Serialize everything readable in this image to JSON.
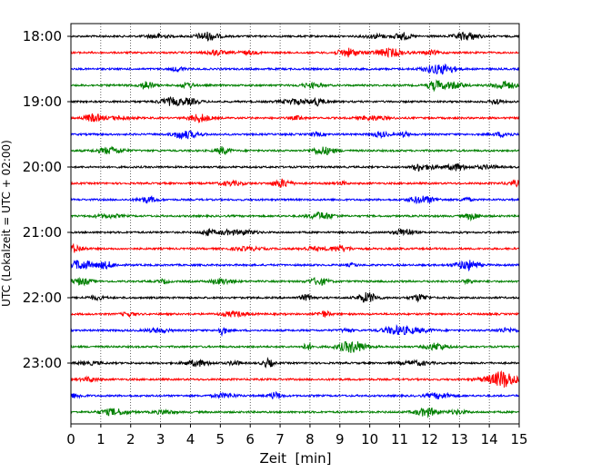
{
  "chart_data": {
    "type": "line",
    "title": "",
    "xlabel": "Zeit  [min]",
    "ylabel": "UTC (Lokalzeit = UTC + 02:00)",
    "xlim": [
      0,
      15
    ],
    "x_ticks": [
      0,
      1,
      2,
      3,
      4,
      5,
      6,
      7,
      8,
      9,
      10,
      11,
      12,
      13,
      14,
      15
    ],
    "x_tick_labels": [
      "0",
      "1",
      "2",
      "3",
      "4",
      "5",
      "6",
      "7",
      "8",
      "9",
      "10",
      "11",
      "12",
      "13",
      "14",
      "15"
    ],
    "y_tick_labels": [
      "18:00",
      "19:00",
      "20:00",
      "21:00",
      "22:00",
      "23:00"
    ],
    "grid": "vertical dotted lines at each minute",
    "trace_colors": [
      "#000000",
      "#ff0000",
      "#0000ff",
      "#008000"
    ],
    "traces": [
      {
        "start": "18:00",
        "color": "#000000"
      },
      {
        "start": "18:15",
        "color": "#ff0000"
      },
      {
        "start": "18:30",
        "color": "#0000ff"
      },
      {
        "start": "18:45",
        "color": "#008000"
      },
      {
        "start": "19:00",
        "color": "#000000"
      },
      {
        "start": "19:15",
        "color": "#ff0000"
      },
      {
        "start": "19:30",
        "color": "#0000ff"
      },
      {
        "start": "19:45",
        "color": "#008000"
      },
      {
        "start": "20:00",
        "color": "#000000"
      },
      {
        "start": "20:15",
        "color": "#ff0000"
      },
      {
        "start": "20:30",
        "color": "#0000ff"
      },
      {
        "start": "20:45",
        "color": "#008000"
      },
      {
        "start": "21:00",
        "color": "#000000"
      },
      {
        "start": "21:15",
        "color": "#ff0000"
      },
      {
        "start": "21:30",
        "color": "#0000ff"
      },
      {
        "start": "21:45",
        "color": "#008000"
      },
      {
        "start": "22:00",
        "color": "#000000"
      },
      {
        "start": "22:15",
        "color": "#ff0000"
      },
      {
        "start": "22:30",
        "color": "#0000ff"
      },
      {
        "start": "22:45",
        "color": "#008000"
      },
      {
        "start": "23:00",
        "color": "#000000"
      },
      {
        "start": "23:15",
        "color": "#ff0000"
      },
      {
        "start": "23:30",
        "color": "#0000ff"
      },
      {
        "start": "23:45",
        "color": "#008000"
      }
    ]
  }
}
